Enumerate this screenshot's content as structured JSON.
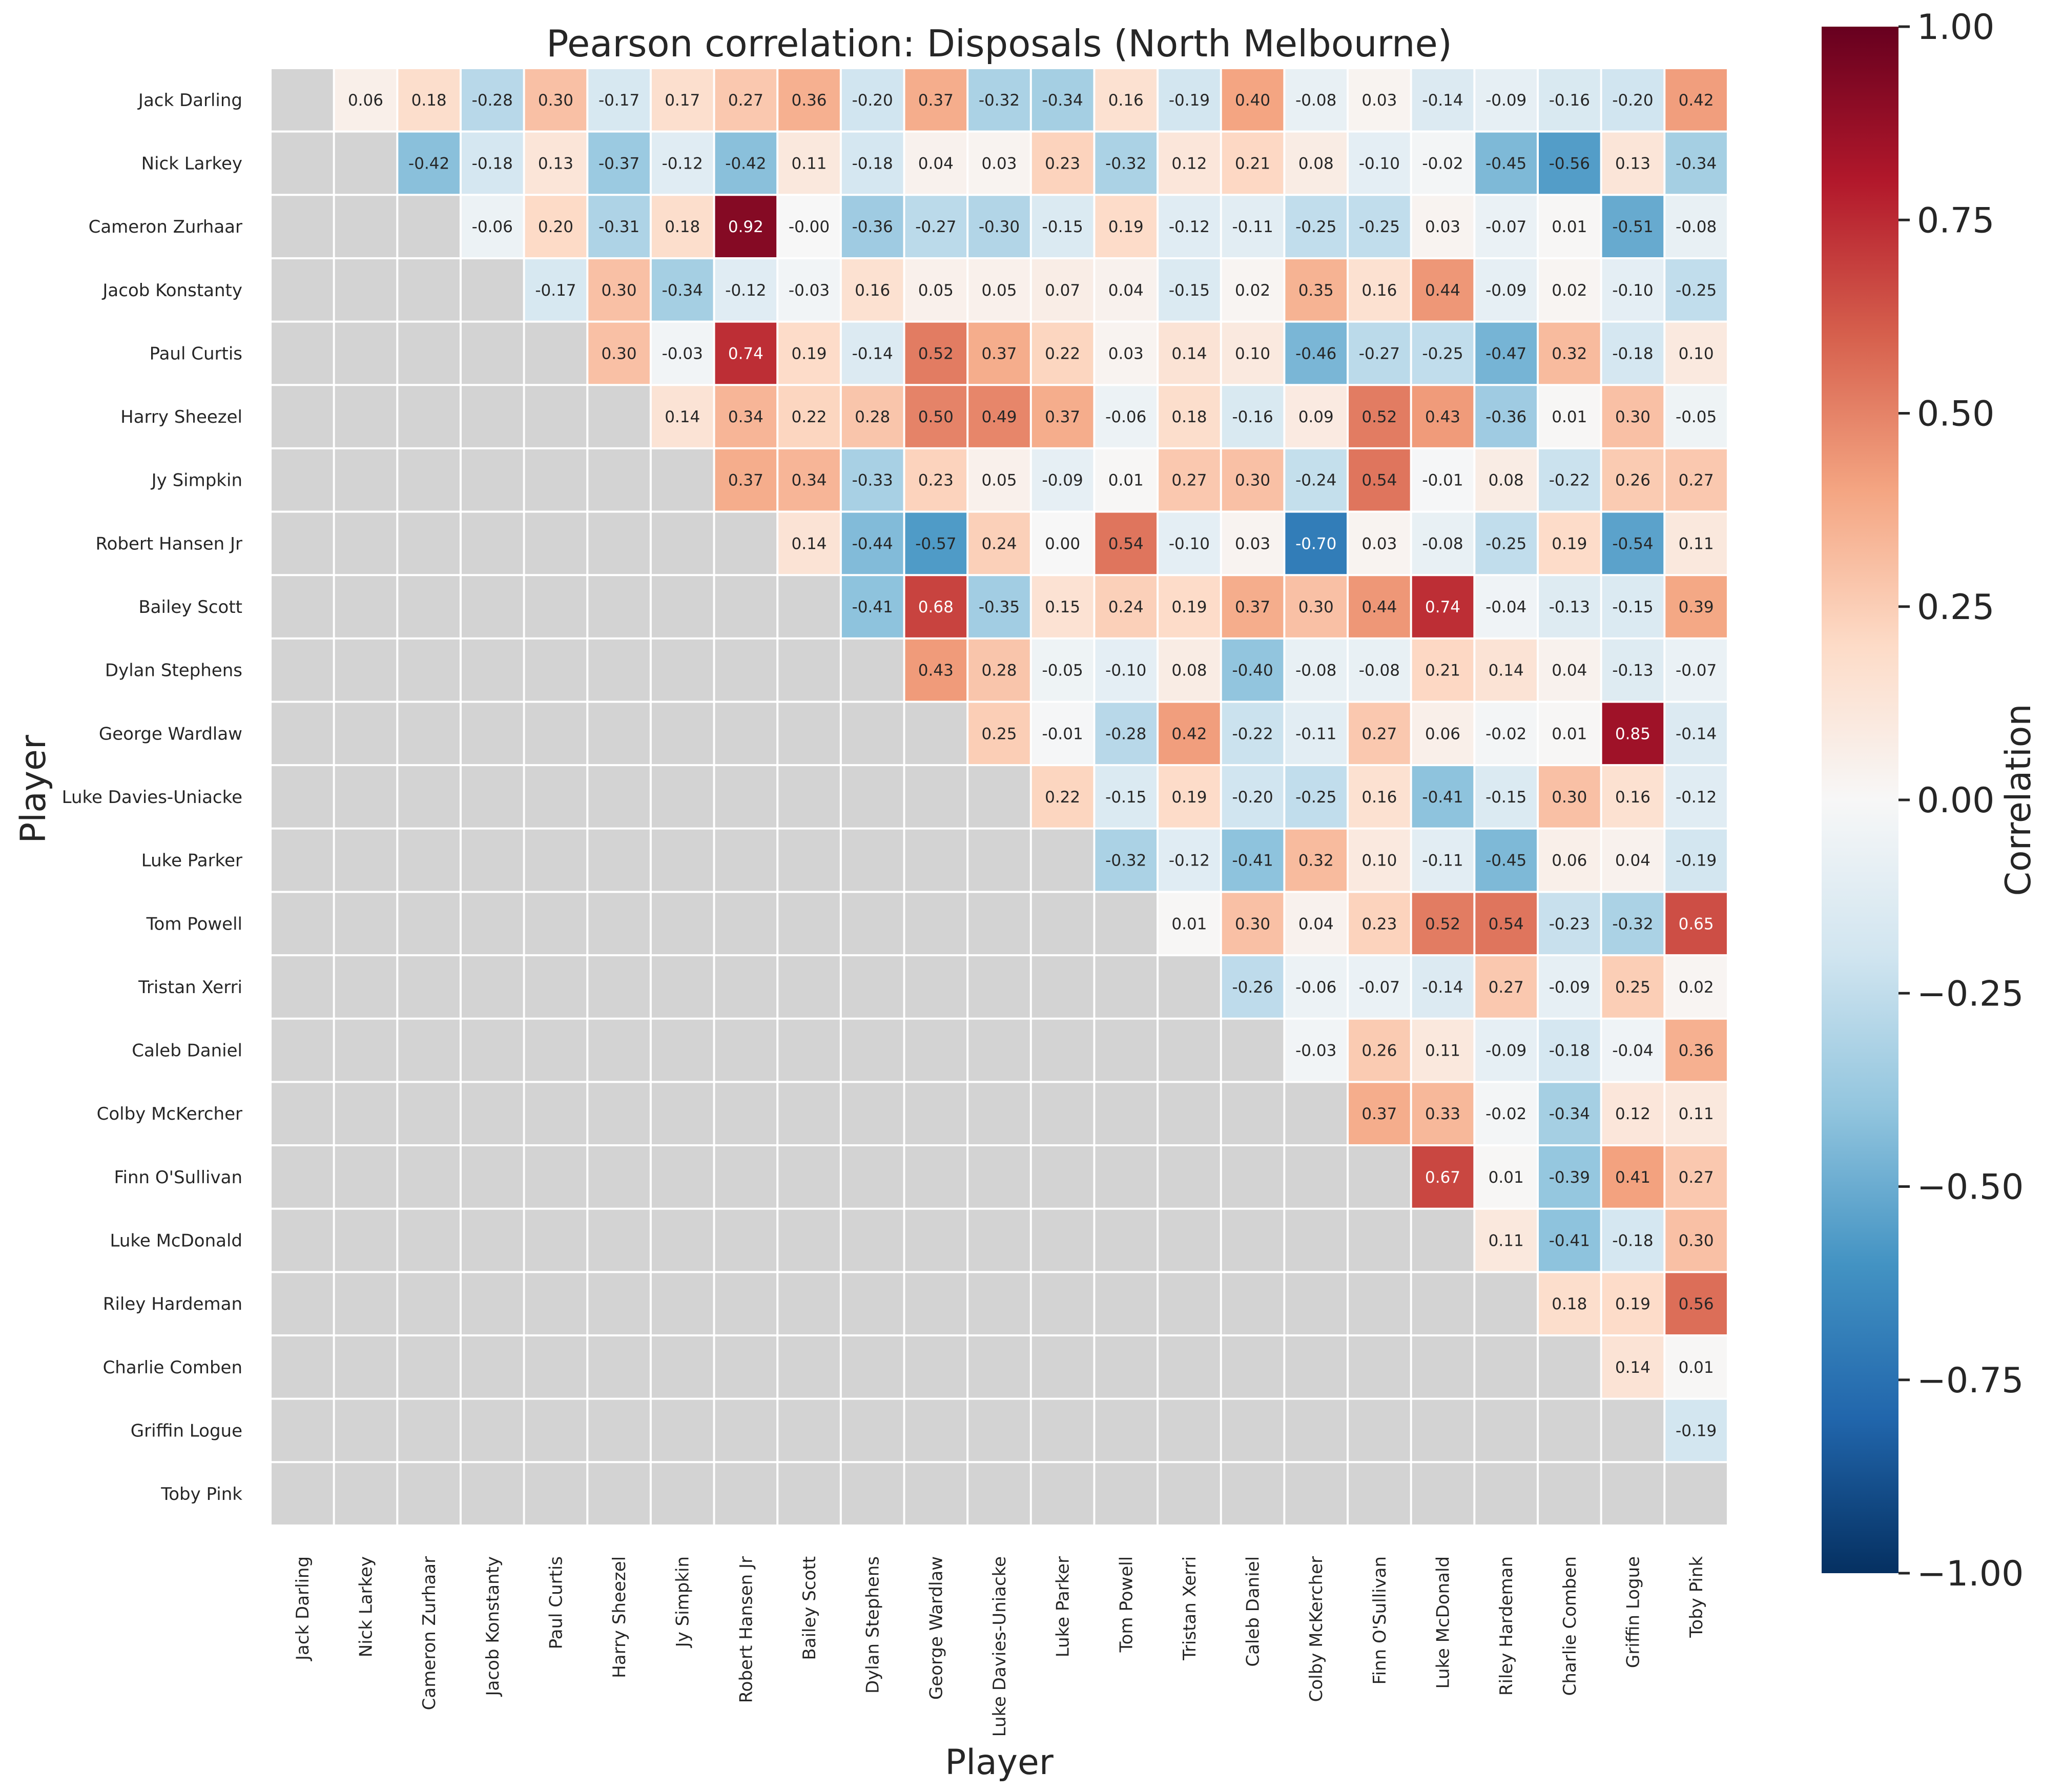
{
  "chart_data": {
    "type": "heatmap",
    "title": "Pearson correlation: Disposals (North Melbourne)",
    "xlabel": "Player",
    "ylabel": "Player",
    "colorbar": {
      "label": "Correlation",
      "range": [
        -1.0,
        1.0
      ],
      "ticks": [
        "1.00",
        "0.75",
        "0.50",
        "0.25",
        "0.00",
        "−0.25",
        "−0.50",
        "−0.75",
        "−1.00"
      ],
      "tick_values": [
        1.0,
        0.75,
        0.5,
        0.25,
        0.0,
        -0.25,
        -0.5,
        -0.75,
        -1.0
      ],
      "colormap": "RdBu_r",
      "colors": [
        "#053061",
        "#2166ac",
        "#4393c3",
        "#92c5de",
        "#d1e5f0",
        "#f7f7f7",
        "#fddbc7",
        "#f4a582",
        "#d6604d",
        "#b2182b",
        "#67001f"
      ]
    },
    "masked_color": "#d3d3d3",
    "gridline_color": "#ffffff",
    "players": [
      "Jack Darling",
      "Nick Larkey",
      "Cameron Zurhaar",
      "Jacob Konstanty",
      "Paul Curtis",
      "Harry Sheezel",
      "Jy Simpkin",
      "Robert Hansen Jr",
      "Bailey Scott",
      "Dylan Stephens",
      "George Wardlaw",
      "Luke Davies-Uniacke",
      "Luke Parker",
      "Tom Powell",
      "Tristan Xerri",
      "Caleb Daniel",
      "Colby McKercher",
      "Finn O'Sullivan",
      "Luke McDonald",
      "Riley Hardeman",
      "Charlie Comben",
      "Griffin Logue",
      "Toby Pink"
    ],
    "matrix": [
      [
        null,
        0.06,
        0.18,
        -0.28,
        0.3,
        -0.17,
        0.17,
        0.27,
        0.36,
        -0.2,
        0.37,
        -0.32,
        -0.34,
        0.16,
        -0.19,
        0.4,
        -0.08,
        0.03,
        -0.14,
        -0.09,
        -0.16,
        -0.2,
        0.42
      ],
      [
        null,
        null,
        -0.42,
        -0.18,
        0.13,
        -0.37,
        -0.12,
        -0.42,
        0.11,
        -0.18,
        0.04,
        0.03,
        0.23,
        -0.32,
        0.12,
        0.21,
        0.08,
        -0.1,
        -0.02,
        -0.45,
        -0.56,
        0.13,
        -0.34
      ],
      [
        null,
        null,
        null,
        -0.06,
        0.2,
        -0.31,
        0.18,
        0.92,
        -0.0,
        -0.36,
        -0.27,
        -0.3,
        -0.15,
        0.19,
        -0.12,
        -0.11,
        -0.25,
        -0.25,
        0.03,
        -0.07,
        0.01,
        -0.51,
        -0.08
      ],
      [
        null,
        null,
        null,
        null,
        -0.17,
        0.3,
        -0.34,
        -0.12,
        -0.03,
        0.16,
        0.05,
        0.05,
        0.07,
        0.04,
        -0.15,
        0.02,
        0.35,
        0.16,
        0.44,
        -0.09,
        0.02,
        -0.1,
        -0.25
      ],
      [
        null,
        null,
        null,
        null,
        null,
        0.3,
        -0.03,
        0.74,
        0.19,
        -0.14,
        0.52,
        0.37,
        0.22,
        0.03,
        0.14,
        0.1,
        -0.46,
        -0.27,
        -0.25,
        -0.47,
        0.32,
        -0.18,
        0.1
      ],
      [
        null,
        null,
        null,
        null,
        null,
        null,
        0.14,
        0.34,
        0.22,
        0.28,
        0.5,
        0.49,
        0.37,
        -0.06,
        0.18,
        -0.16,
        0.09,
        0.52,
        0.43,
        -0.36,
        0.01,
        0.3,
        -0.05
      ],
      [
        null,
        null,
        null,
        null,
        null,
        null,
        null,
        0.37,
        0.34,
        -0.33,
        0.23,
        0.05,
        -0.09,
        0.01,
        0.27,
        0.3,
        -0.24,
        0.54,
        -0.01,
        0.08,
        -0.22,
        0.26,
        0.27
      ],
      [
        null,
        null,
        null,
        null,
        null,
        null,
        null,
        null,
        0.14,
        -0.44,
        -0.57,
        0.24,
        0.0,
        0.54,
        -0.1,
        0.03,
        -0.7,
        0.03,
        -0.08,
        -0.25,
        0.19,
        -0.54,
        0.11
      ],
      [
        null,
        null,
        null,
        null,
        null,
        null,
        null,
        null,
        null,
        -0.41,
        0.68,
        -0.35,
        0.15,
        0.24,
        0.19,
        0.37,
        0.3,
        0.44,
        0.74,
        -0.04,
        -0.13,
        -0.15,
        0.39
      ],
      [
        null,
        null,
        null,
        null,
        null,
        null,
        null,
        null,
        null,
        null,
        0.43,
        0.28,
        -0.05,
        -0.1,
        0.08,
        -0.4,
        -0.08,
        -0.08,
        0.21,
        0.14,
        0.04,
        -0.13,
        -0.07
      ],
      [
        null,
        null,
        null,
        null,
        null,
        null,
        null,
        null,
        null,
        null,
        null,
        0.25,
        -0.01,
        -0.28,
        0.42,
        -0.22,
        -0.11,
        0.27,
        0.06,
        -0.02,
        0.01,
        0.85,
        -0.14
      ],
      [
        null,
        null,
        null,
        null,
        null,
        null,
        null,
        null,
        null,
        null,
        null,
        null,
        0.22,
        -0.15,
        0.19,
        -0.2,
        -0.25,
        0.16,
        -0.41,
        -0.15,
        0.3,
        0.16,
        -0.12
      ],
      [
        null,
        null,
        null,
        null,
        null,
        null,
        null,
        null,
        null,
        null,
        null,
        null,
        null,
        -0.32,
        -0.12,
        -0.41,
        0.32,
        0.1,
        -0.11,
        -0.45,
        0.06,
        0.04,
        -0.19
      ],
      [
        null,
        null,
        null,
        null,
        null,
        null,
        null,
        null,
        null,
        null,
        null,
        null,
        null,
        null,
        0.01,
        0.3,
        0.04,
        0.23,
        0.52,
        0.54,
        -0.23,
        -0.32,
        0.65
      ],
      [
        null,
        null,
        null,
        null,
        null,
        null,
        null,
        null,
        null,
        null,
        null,
        null,
        null,
        null,
        null,
        -0.26,
        -0.06,
        -0.07,
        -0.14,
        0.27,
        -0.09,
        0.25,
        0.02
      ],
      [
        null,
        null,
        null,
        null,
        null,
        null,
        null,
        null,
        null,
        null,
        null,
        null,
        null,
        null,
        null,
        null,
        -0.03,
        0.26,
        0.11,
        -0.09,
        -0.18,
        -0.04,
        0.36
      ],
      [
        null,
        null,
        null,
        null,
        null,
        null,
        null,
        null,
        null,
        null,
        null,
        null,
        null,
        null,
        null,
        null,
        null,
        0.37,
        0.33,
        -0.02,
        -0.34,
        0.12,
        0.11
      ],
      [
        null,
        null,
        null,
        null,
        null,
        null,
        null,
        null,
        null,
        null,
        null,
        null,
        null,
        null,
        null,
        null,
        null,
        null,
        0.67,
        0.01,
        -0.39,
        0.41,
        0.27
      ],
      [
        null,
        null,
        null,
        null,
        null,
        null,
        null,
        null,
        null,
        null,
        null,
        null,
        null,
        null,
        null,
        null,
        null,
        null,
        null,
        0.11,
        -0.41,
        -0.18,
        0.3
      ],
      [
        null,
        null,
        null,
        null,
        null,
        null,
        null,
        null,
        null,
        null,
        null,
        null,
        null,
        null,
        null,
        null,
        null,
        null,
        null,
        null,
        0.18,
        0.19,
        0.56
      ],
      [
        null,
        null,
        null,
        null,
        null,
        null,
        null,
        null,
        null,
        null,
        null,
        null,
        null,
        null,
        null,
        null,
        null,
        null,
        null,
        null,
        null,
        0.14,
        0.01
      ],
      [
        null,
        null,
        null,
        null,
        null,
        null,
        null,
        null,
        null,
        null,
        null,
        null,
        null,
        null,
        null,
        null,
        null,
        null,
        null,
        null,
        null,
        null,
        -0.19
      ],
      [
        null,
        null,
        null,
        null,
        null,
        null,
        null,
        null,
        null,
        null,
        null,
        null,
        null,
        null,
        null,
        null,
        null,
        null,
        null,
        null,
        null,
        null,
        null
      ]
    ]
  }
}
